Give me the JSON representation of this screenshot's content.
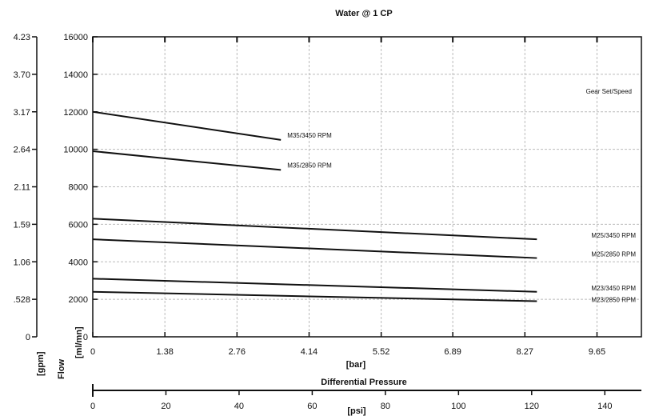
{
  "chart_data": {
    "type": "line",
    "title": "Water @ 1 CP",
    "legend_title": "Gear Set/Speed",
    "xlabel": "[bar]",
    "xlabel_secondary": "Differential Pressure",
    "xlabel_psi": "[psi]",
    "ylabel_primary": "[ml/mn]",
    "ylabel_flow": "Flow",
    "ylabel_gpm": "[gpm]",
    "xlim": [
      0,
      10.5
    ],
    "ylim": [
      0,
      16000
    ],
    "x_ticks": [
      "0",
      "1.38",
      "2.76",
      "4.14",
      "5.52",
      "6.89",
      "8.27",
      "9.65"
    ],
    "x_tick_values": [
      0,
      1.38,
      2.76,
      4.14,
      5.52,
      6.89,
      8.27,
      9.65
    ],
    "y_ticks": [
      "0",
      "2000",
      "4000",
      "6000",
      "8000",
      "10000",
      "12000",
      "14000",
      "16000"
    ],
    "y_tick_values": [
      0,
      2000,
      4000,
      6000,
      8000,
      10000,
      12000,
      14000,
      16000
    ],
    "gpm_ticks": [
      "0",
      ".528",
      "1.06",
      "1.59",
      "2.11",
      "2.64",
      "3.17",
      "3.70",
      "4.23"
    ],
    "psi_ticks": [
      "0",
      "20",
      "40",
      "60",
      "80",
      "100",
      "120",
      "140"
    ],
    "psi_tick_values": [
      0,
      20,
      40,
      60,
      80,
      100,
      120,
      140
    ],
    "grid": true,
    "series": [
      {
        "name": "M35/3450 RPM",
        "x": [
          0,
          3.6
        ],
        "y": [
          12000,
          10500
        ]
      },
      {
        "name": "M35/2850 RPM",
        "x": [
          0,
          3.6
        ],
        "y": [
          9900,
          8900
        ]
      },
      {
        "name": "M25/3450 RPM",
        "x": [
          0,
          8.5
        ],
        "y": [
          6300,
          5200
        ]
      },
      {
        "name": "M25/2850 RPM",
        "x": [
          0,
          8.5
        ],
        "y": [
          5200,
          4200
        ]
      },
      {
        "name": "M23/3450 RPM",
        "x": [
          0,
          8.5
        ],
        "y": [
          3100,
          2400
        ]
      },
      {
        "name": "M23/2850 RPM",
        "x": [
          0,
          8.5
        ],
        "y": [
          2400,
          1900
        ]
      }
    ]
  }
}
